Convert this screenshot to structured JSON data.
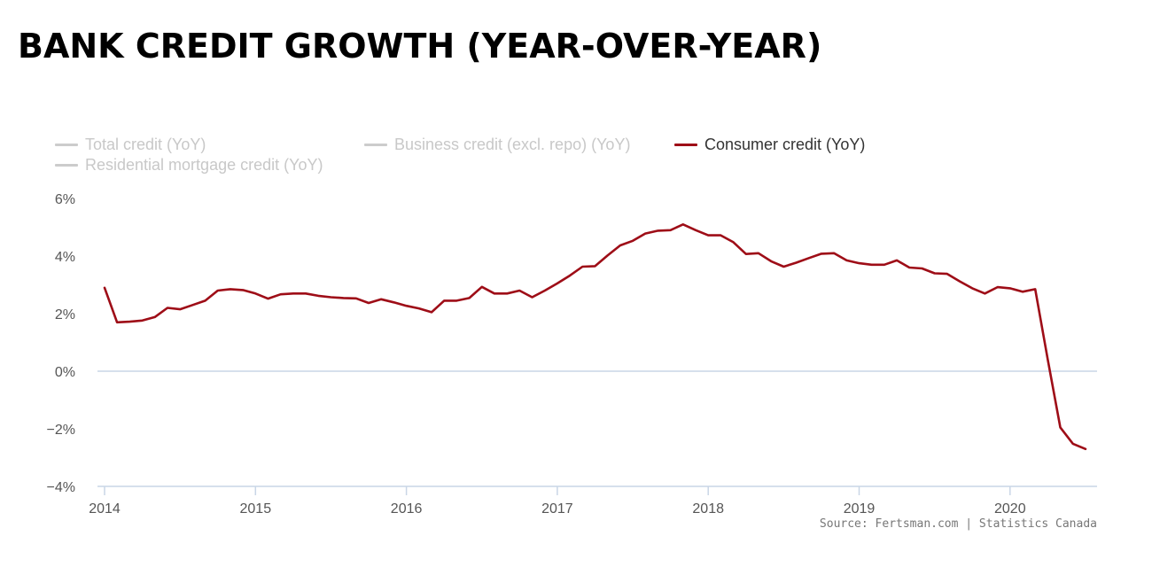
{
  "title": "BANK CREDIT GROWTH (YEAR-OVER-YEAR)",
  "source": "Source: Fertsman.com | Statistics Canada",
  "legend": [
    {
      "label": "Total credit (YoY)",
      "active": false
    },
    {
      "label": "Business credit (excl. repo) (YoY)",
      "active": false
    },
    {
      "label": "Consumer credit (YoY)",
      "active": true
    },
    {
      "label": "Residential mortgage credit (YoY)",
      "active": false
    }
  ],
  "colors": {
    "consumer": "#9e0d17",
    "inactive": "#cccccc",
    "zero_line": "#c9d6e6",
    "axis": "#c9d6e6"
  },
  "chart_data": {
    "type": "line",
    "title": "BANK CREDIT GROWTH (YEAR-OVER-YEAR)",
    "xlabel": "",
    "ylabel": "",
    "xlim": [
      2014,
      2020.6
    ],
    "ylim": [
      -4,
      6
    ],
    "yticks": [
      6,
      4,
      2,
      0,
      -2,
      -4
    ],
    "ytick_labels": [
      "6%",
      "4%",
      "2%",
      "0%",
      "−2%",
      "−4%"
    ],
    "xticks": [
      2014,
      2015,
      2016,
      2017,
      2018,
      2019,
      2020
    ],
    "xtick_labels": [
      "2014",
      "2015",
      "2016",
      "2017",
      "2018",
      "2019",
      "2020"
    ],
    "series": [
      {
        "name": "Consumer credit (YoY)",
        "visible": true,
        "x": [
          2014.0,
          2014.083,
          2014.167,
          2014.25,
          2014.333,
          2014.417,
          2014.5,
          2014.583,
          2014.667,
          2014.75,
          2014.833,
          2014.917,
          2015.0,
          2015.083,
          2015.167,
          2015.25,
          2015.333,
          2015.417,
          2015.5,
          2015.583,
          2015.667,
          2015.75,
          2015.833,
          2015.917,
          2016.0,
          2016.083,
          2016.167,
          2016.25,
          2016.333,
          2016.417,
          2016.5,
          2016.583,
          2016.667,
          2016.75,
          2016.833,
          2016.917,
          2017.0,
          2017.083,
          2017.167,
          2017.25,
          2017.333,
          2017.417,
          2017.5,
          2017.583,
          2017.667,
          2017.75,
          2017.833,
          2017.917,
          2018.0,
          2018.083,
          2018.167,
          2018.25,
          2018.333,
          2018.417,
          2018.5,
          2018.583,
          2018.667,
          2018.75,
          2018.833,
          2018.917,
          2019.0,
          2019.083,
          2019.167,
          2019.25,
          2019.333,
          2019.417,
          2019.5,
          2019.583,
          2019.667,
          2019.75,
          2019.833,
          2019.917,
          2020.0,
          2020.083,
          2020.167,
          2020.25,
          2020.333,
          2020.417,
          2020.5
        ],
        "values": [
          2.9,
          1.7,
          1.72,
          1.76,
          1.88,
          2.2,
          2.15,
          2.3,
          2.45,
          2.8,
          2.85,
          2.82,
          2.7,
          2.52,
          2.67,
          2.7,
          2.7,
          2.62,
          2.57,
          2.54,
          2.53,
          2.37,
          2.5,
          2.39,
          2.27,
          2.18,
          2.05,
          2.45,
          2.45,
          2.54,
          2.93,
          2.7,
          2.7,
          2.8,
          2.57,
          2.8,
          3.05,
          3.32,
          3.63,
          3.65,
          4.02,
          4.37,
          4.53,
          4.78,
          4.88,
          4.9,
          5.1,
          4.9,
          4.72,
          4.72,
          4.48,
          4.07,
          4.1,
          3.82,
          3.63,
          3.77,
          3.93,
          4.08,
          4.1,
          3.85,
          3.75,
          3.7,
          3.7,
          3.85,
          3.6,
          3.57,
          3.4,
          3.38,
          3.12,
          2.88,
          2.7,
          2.92,
          2.88,
          2.76,
          2.85,
          0.4,
          -1.95,
          -2.52,
          -2.7
        ]
      },
      {
        "name": "Total credit (YoY)",
        "visible": false
      },
      {
        "name": "Business credit (excl. repo) (YoY)",
        "visible": false
      },
      {
        "name": "Residential mortgage credit (YoY)",
        "visible": false
      }
    ]
  }
}
